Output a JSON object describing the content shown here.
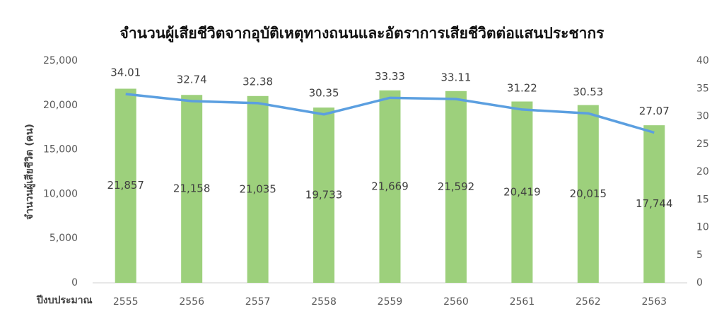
{
  "chart_data": {
    "type": "bar",
    "title": "จำนวนผู้เสียชีวิตจากอุบัติเหตุทางถนนและอัตราการเสียชีวิตต่อแสนประชากร",
    "y_label": "จำนวนผู้เสียชีวิต (คน)",
    "x_label": "ปีงบประมาณ",
    "categories": [
      "2555",
      "2556",
      "2557",
      "2558",
      "2559",
      "2560",
      "2561",
      "2562",
      "2563"
    ],
    "series": [
      {
        "name": "จำนวนผู้เสียชีวิต",
        "type": "bar",
        "color": "#9dd07c",
        "values": [
          21857,
          21158,
          21035,
          19733,
          21669,
          21592,
          20419,
          20015,
          17744
        ],
        "value_labels": [
          "21,857",
          "21,158",
          "21,035",
          "19,733",
          "21,669",
          "21,592",
          "20,419",
          "20,015",
          "17,744"
        ]
      },
      {
        "name": "อัตราการเสียชีวิตต่อแสนประชากร",
        "type": "line",
        "axis": "y2",
        "color": "#5b9fe0",
        "values": [
          34.01,
          32.74,
          32.38,
          30.35,
          33.33,
          33.11,
          31.22,
          30.53,
          27.07
        ]
      }
    ],
    "ylim": [
      0,
      25000
    ],
    "yticks": [
      0,
      {
        "value": 5000,
        "label": "5,000"
      },
      {
        "value": 10000,
        "label": "10,000"
      },
      {
        "value": 15000,
        "label": "15,000"
      },
      {
        "value": 20000,
        "label": "20,000"
      },
      {
        "value": 25000,
        "label": "25,000"
      }
    ],
    "y2lim": [
      0,
      40
    ],
    "y2ticks": [
      0,
      5,
      10,
      15,
      20,
      25,
      30,
      35,
      40
    ],
    "grid": false
  }
}
